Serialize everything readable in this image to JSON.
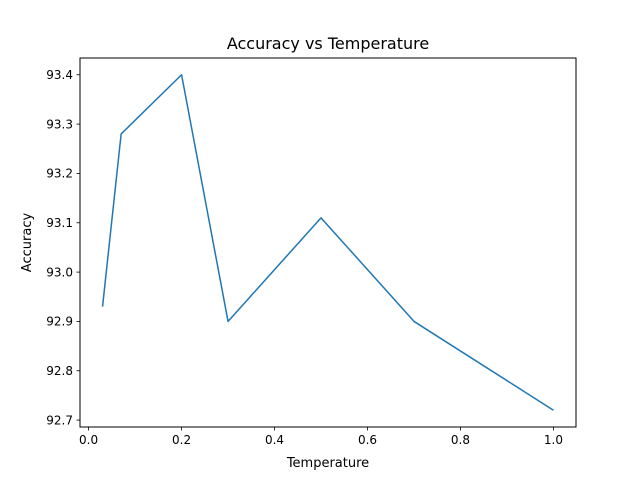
{
  "chart_data": {
    "type": "line",
    "title": "Accuracy vs Temperature",
    "xlabel": "Temperature",
    "ylabel": "Accuracy",
    "xlim": [
      -0.0185,
      1.0485
    ],
    "ylim": [
      92.686,
      93.434
    ],
    "xticks": [
      0.0,
      0.2,
      0.4,
      0.6,
      0.8,
      1.0
    ],
    "xtick_labels": [
      "0.0",
      "0.2",
      "0.4",
      "0.6",
      "0.8",
      "1.0"
    ],
    "yticks": [
      92.7,
      92.8,
      92.9,
      93.0,
      93.1,
      93.2,
      93.3,
      93.4
    ],
    "ytick_labels": [
      "92.7",
      "92.8",
      "92.9",
      "93.0",
      "93.1",
      "93.2",
      "93.3",
      "93.4"
    ],
    "grid": false,
    "series": [
      {
        "x": [
          0.03,
          0.07,
          0.2,
          0.3,
          0.5,
          0.7,
          1.0
        ],
        "y": [
          92.93,
          93.28,
          93.4,
          92.9,
          93.11,
          92.9,
          92.72
        ],
        "color": "#1f77b4"
      }
    ]
  }
}
